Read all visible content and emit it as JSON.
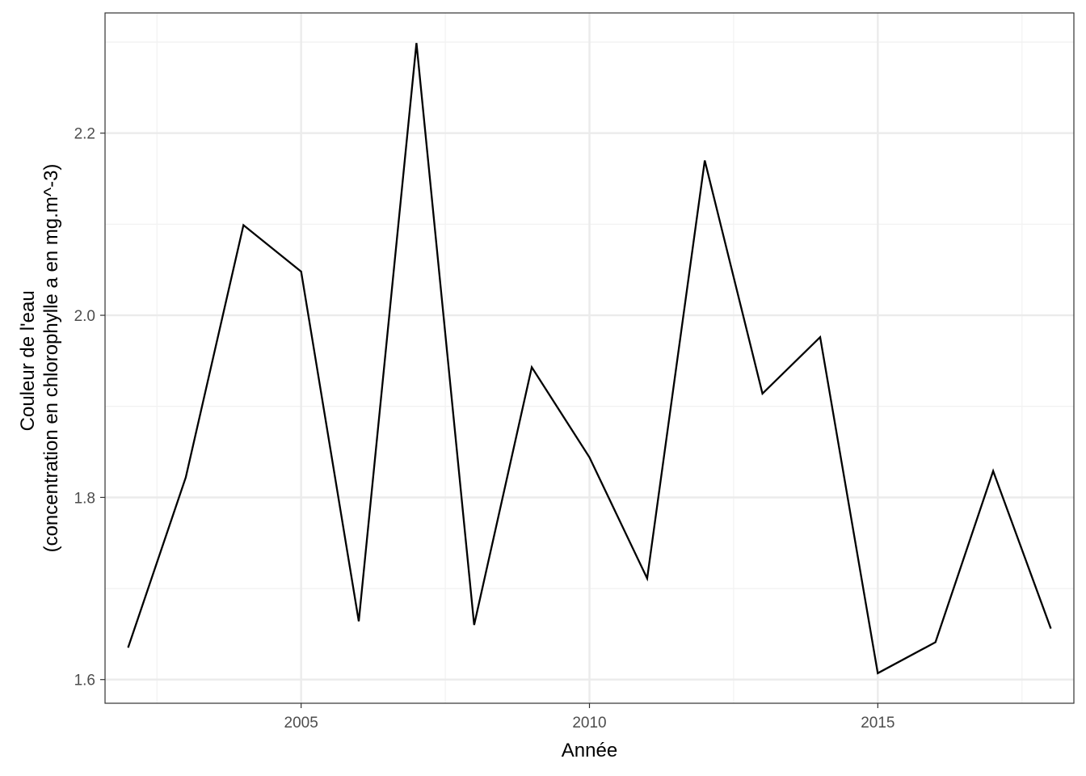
{
  "chart_data": {
    "type": "line",
    "title": "",
    "xlabel": "Année",
    "ylabel_lines": [
      "Couleur de l'eau",
      "(concentration en chlorophylle a en mg.m^-3)"
    ],
    "xlim": [
      2001.6,
      2018.4
    ],
    "ylim": [
      1.574,
      2.332
    ],
    "x_ticks": [
      2005,
      2010,
      2015
    ],
    "x_tick_labels": [
      "2005",
      "2010",
      "2015"
    ],
    "x_minor_ticks": [
      2002.5,
      2007.5,
      2012.5,
      2017.5
    ],
    "y_ticks": [
      1.6,
      1.8,
      2.0,
      2.2
    ],
    "y_tick_labels": [
      "1.6",
      "1.8",
      "2.0",
      "2.2"
    ],
    "y_minor_ticks": [
      1.7,
      1.9,
      2.1,
      2.3
    ],
    "grid": true,
    "theme": "bw",
    "series": [
      {
        "color": "#000000",
        "x": [
          2002,
          2003,
          2004,
          2005,
          2006,
          2007,
          2008,
          2009,
          2010,
          2011,
          2012,
          2013,
          2014,
          2015,
          2016,
          2017,
          2018
        ],
        "values": [
          1.635,
          1.822,
          2.099,
          2.048,
          1.664,
          2.299,
          1.66,
          1.943,
          1.844,
          1.711,
          2.17,
          1.914,
          1.976,
          1.607,
          1.641,
          1.829,
          1.656
        ]
      }
    ]
  }
}
